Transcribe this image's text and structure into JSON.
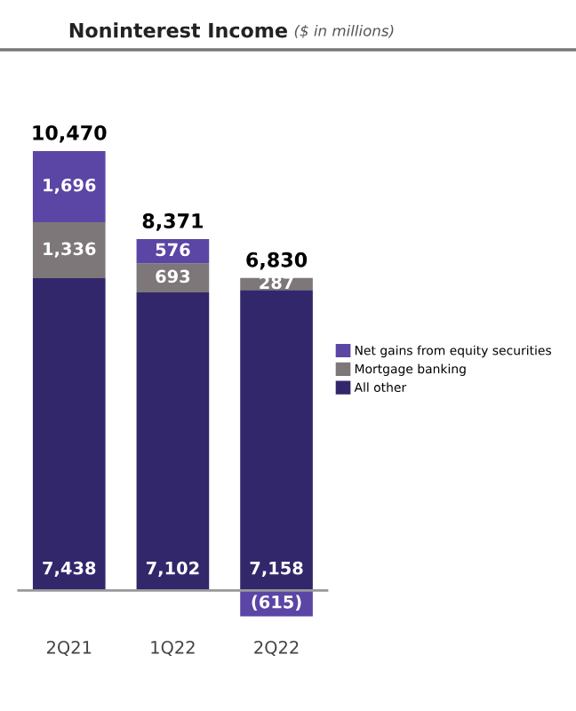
{
  "chart_data": {
    "type": "bar",
    "title": "Noninterest Income",
    "subtitle": "($ in millions)",
    "categories": [
      "2Q21",
      "1Q22",
      "2Q22"
    ],
    "stacked": true,
    "data_labels": true,
    "legend": "right",
    "series": [
      {
        "name": "All other",
        "color": "#33276b",
        "values": [
          7438,
          7102,
          7158
        ],
        "value_labels": [
          "7,438",
          "7,102",
          "7,158"
        ]
      },
      {
        "name": "Mortgage banking",
        "color": "#7d7779",
        "values": [
          1336,
          693,
          287
        ],
        "value_labels": [
          "1,336",
          "693",
          "287"
        ]
      },
      {
        "name": "Net gains from equity securities",
        "color": "#5b45a5",
        "values": [
          1696,
          576,
          -615
        ],
        "value_labels": [
          "1,696",
          "576",
          "(615)"
        ]
      }
    ],
    "totals": [
      "10,470",
      "8,371",
      "6,830"
    ]
  }
}
